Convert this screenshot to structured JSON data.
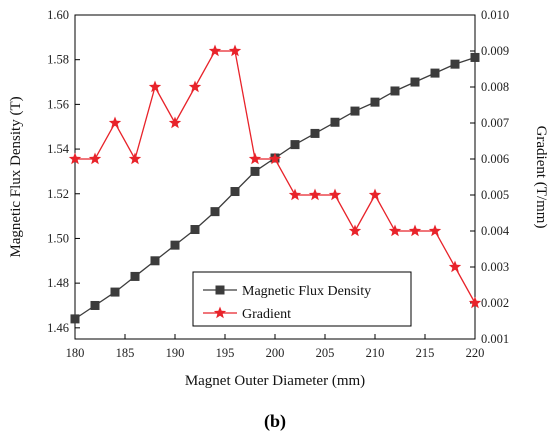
{
  "chart_data": {
    "type": "line",
    "panel_label": "(b)",
    "xlabel": "Magnet Outer Diameter (mm)",
    "ylabel": "Magnetic Flux Density (T)",
    "y2label": "Gradient (T/mm)",
    "xlim": [
      180,
      220
    ],
    "ylim": [
      1.455,
      1.6
    ],
    "y2lim": [
      0.001,
      0.01
    ],
    "x_ticks": [
      "180",
      "185",
      "190",
      "195",
      "200",
      "205",
      "210",
      "215",
      "220"
    ],
    "y_ticks": [
      "1.46",
      "1.48",
      "1.50",
      "1.52",
      "1.54",
      "1.56",
      "1.58",
      "1.60"
    ],
    "y2_ticks": [
      "0.001",
      "0.002",
      "0.003",
      "0.004",
      "0.005",
      "0.006",
      "0.007",
      "0.008",
      "0.009",
      "0.010"
    ],
    "grid": false,
    "legend_position": "bottom-center",
    "series": [
      {
        "name": "Magnetic Flux Density",
        "axis": "left",
        "marker": "square",
        "color": "#3c3c3c",
        "x": [
          180,
          182,
          184,
          186,
          188,
          190,
          192,
          194,
          196,
          198,
          200,
          202,
          204,
          206,
          208,
          210,
          212,
          214,
          216,
          218,
          220
        ],
        "values": [
          1.464,
          1.47,
          1.476,
          1.483,
          1.49,
          1.497,
          1.504,
          1.512,
          1.521,
          1.53,
          1.536,
          1.542,
          1.547,
          1.552,
          1.557,
          1.561,
          1.566,
          1.57,
          1.574,
          1.578,
          1.581
        ]
      },
      {
        "name": "Gradient",
        "axis": "right",
        "marker": "star",
        "color": "#e8232a",
        "x": [
          180,
          182,
          184,
          186,
          188,
          190,
          192,
          194,
          196,
          198,
          200,
          202,
          204,
          206,
          208,
          210,
          212,
          214,
          216,
          218,
          220
        ],
        "values": [
          0.006,
          0.006,
          0.007,
          0.006,
          0.008,
          0.007,
          0.008,
          0.009,
          0.009,
          0.006,
          0.006,
          0.005,
          0.005,
          0.005,
          0.004,
          0.005,
          0.004,
          0.004,
          0.004,
          0.003,
          0.002
        ]
      }
    ]
  }
}
